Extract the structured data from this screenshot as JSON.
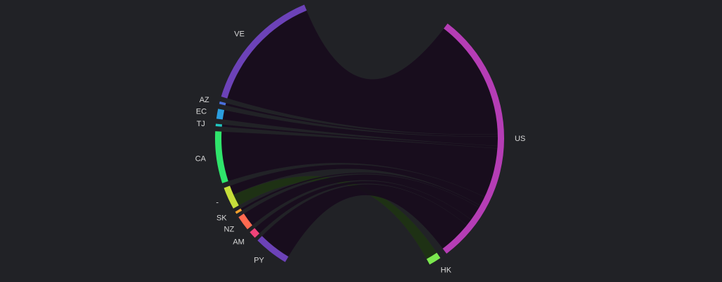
{
  "chart_data": {
    "type": "chord",
    "groups": [
      {
        "name": "US",
        "color": "#b53db5"
      },
      {
        "name": "HK",
        "color": "#7be84e"
      },
      {
        "name": "PY",
        "color": "#6c42b8"
      },
      {
        "name": "AM",
        "color": "#f0437a"
      },
      {
        "name": "NZ",
        "color": "#ff6a50"
      },
      {
        "name": "SK",
        "color": "#f2a02e"
      },
      {
        "name": "-",
        "color": "#c6de3a"
      },
      {
        "name": "CA",
        "color": "#2fe46b"
      },
      {
        "name": "TJ",
        "color": "#20c6c0"
      },
      {
        "name": "EC",
        "color": "#2b9ee0"
      },
      {
        "name": "AZ",
        "color": "#4a6fdc"
      },
      {
        "name": "VE",
        "color": "#6c42b8"
      }
    ],
    "flows": [
      {
        "source": "VE",
        "target": "US",
        "value": 51,
        "color": "#170a1c"
      },
      {
        "source": "AZ",
        "target": "US",
        "value": 1,
        "color": "#170a1c"
      },
      {
        "source": "EC",
        "target": "US",
        "value": 4,
        "color": "#170a1c"
      },
      {
        "source": "TJ",
        "target": "US",
        "value": 1,
        "color": "#170a1c"
      },
      {
        "source": "CA",
        "target": "US",
        "value": 21,
        "color": "#170a1c"
      },
      {
        "source": "-",
        "target": "HK",
        "value": 5,
        "color": "#1e3312"
      },
      {
        "source": "-",
        "target": "US",
        "value": 4,
        "color": "#170a1c"
      },
      {
        "source": "SK",
        "target": "US",
        "value": 1,
        "color": "#170a1c"
      },
      {
        "source": "NZ",
        "target": "US",
        "value": 6,
        "color": "#170a1c"
      },
      {
        "source": "AM",
        "target": "US",
        "value": 3,
        "color": "#170a1c"
      },
      {
        "source": "PY",
        "target": "US",
        "value": 14,
        "color": "#170a1c"
      }
    ]
  }
}
